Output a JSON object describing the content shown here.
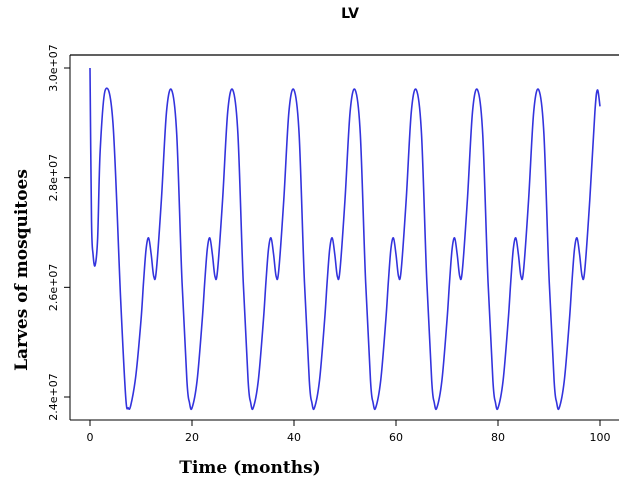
{
  "chart_data": {
    "type": "line",
    "title": "LV",
    "xlabel": "Time (months)",
    "ylabel": "Larves of mosquitoes",
    "xlim": [
      0,
      100
    ],
    "ylim": [
      23800000,
      30200000
    ],
    "x_ticks": [
      0,
      20,
      40,
      60,
      80,
      100
    ],
    "x_tick_labels": [
      "0",
      "20",
      "40",
      "60",
      "80",
      "100"
    ],
    "y_ticks": [
      24000000,
      26000000,
      28000000,
      30000000
    ],
    "y_tick_labels": [
      "2.4e+07",
      "2.6e+07",
      "2.8e+07",
      "3.0e+07"
    ],
    "grid": false,
    "period_months": 12,
    "series": [
      {
        "color": "#3333dd",
        "x": [
          0,
          0.3,
          0.6,
          1,
          1.5,
          2,
          3,
          4.5,
          6,
          7,
          7.5,
          8,
          9,
          10,
          10.5,
          11,
          11.5,
          12,
          12.5,
          13,
          14,
          15,
          16,
          17,
          18,
          19,
          19.5,
          20,
          21,
          22,
          22.5,
          23,
          23.5,
          24,
          24.5,
          25,
          26,
          27,
          28,
          29,
          30,
          31,
          31.5,
          32,
          33,
          34,
          34.5,
          35,
          35.5,
          36,
          36.5,
          37,
          38,
          39,
          40,
          41,
          42,
          43,
          43.5,
          44,
          45,
          46,
          46.5,
          47,
          47.5,
          48,
          48.5,
          49,
          50,
          51,
          52,
          53,
          54,
          55,
          55.5,
          56,
          57,
          58,
          58.5,
          59,
          59.5,
          60,
          60.5,
          61,
          62,
          63,
          64,
          65,
          66,
          67,
          67.5,
          68,
          69,
          70,
          70.5,
          71,
          71.5,
          72,
          72.5,
          73,
          74,
          75,
          76,
          77,
          78,
          79,
          79.5,
          80,
          81,
          82,
          82.5,
          83,
          83.5,
          84,
          84.5,
          85,
          86,
          87,
          88,
          89,
          90,
          91,
          91.5,
          92,
          93,
          94,
          94.5,
          95,
          95.5,
          96,
          96.5,
          97,
          98,
          99,
          99.5,
          100
        ],
        "y": [
          30000000,
          27200000,
          26600000,
          26400000,
          26900000,
          28500000,
          29600000,
          29000000,
          25800000,
          24000000,
          23800000,
          23850000,
          24400000,
          25400000,
          26100000,
          26700000,
          26900000,
          26600000,
          26200000,
          26300000,
          27600000,
          29200000,
          29600000,
          28800000,
          26200000,
          24300000,
          23900000,
          23800000,
          24300000,
          25400000,
          26100000,
          26700000,
          26900000,
          26600000,
          26200000,
          26300000,
          27600000,
          29200000,
          29600000,
          28800000,
          26200000,
          24300000,
          23900000,
          23800000,
          24300000,
          25400000,
          26100000,
          26700000,
          26900000,
          26600000,
          26200000,
          26300000,
          27600000,
          29200000,
          29600000,
          28800000,
          26200000,
          24300000,
          23900000,
          23800000,
          24300000,
          25400000,
          26100000,
          26700000,
          26900000,
          26600000,
          26200000,
          26300000,
          27600000,
          29200000,
          29600000,
          28800000,
          26200000,
          24300000,
          23900000,
          23800000,
          24300000,
          25400000,
          26100000,
          26700000,
          26900000,
          26600000,
          26200000,
          26300000,
          27600000,
          29200000,
          29600000,
          28800000,
          26200000,
          24300000,
          23900000,
          23800000,
          24300000,
          25400000,
          26100000,
          26700000,
          26900000,
          26600000,
          26200000,
          26300000,
          27600000,
          29200000,
          29600000,
          28800000,
          26200000,
          24300000,
          23900000,
          23800000,
          24300000,
          25400000,
          26100000,
          26700000,
          26900000,
          26600000,
          26200000,
          26300000,
          27600000,
          29200000,
          29600000,
          28800000,
          26200000,
          24300000,
          23900000,
          23800000,
          24300000,
          25400000,
          26100000,
          26700000,
          26900000,
          26600000,
          26200000,
          26300000,
          27600000,
          29200000,
          29600000,
          29300000
        ]
      }
    ]
  }
}
